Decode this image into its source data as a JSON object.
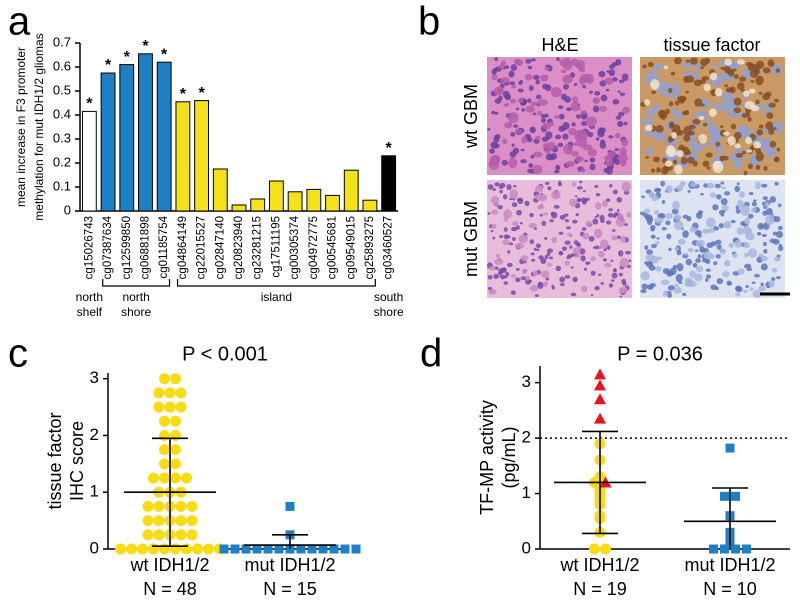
{
  "chart_data": [
    {
      "type": "bar",
      "label": "a",
      "ylabel": [
        "mean increase in F3 promoter",
        "methylation for mut IDH1/2 gliomas"
      ],
      "categories": [
        "cg15026743",
        "cg07387634",
        "cg12599850",
        "cg06881898",
        "cg01185754",
        "cg04864149",
        "cg22015527",
        "cg02847140",
        "cg20823940",
        "cg23281215",
        "cg17511195",
        "cg00305374",
        "cg04972775",
        "cg00545681",
        "cg09549015",
        "cg25893275",
        "cg03460527"
      ],
      "values": [
        0.415,
        0.575,
        0.61,
        0.655,
        0.62,
        0.455,
        0.46,
        0.175,
        0.025,
        0.05,
        0.125,
        0.08,
        0.09,
        0.065,
        0.17,
        0.045,
        0.23
      ],
      "colors": [
        "#ffffff",
        "#1f7fc4",
        "#1f7fc4",
        "#1f7fc4",
        "#1f7fc4",
        "#f5e11a",
        "#f5e11a",
        "#f5e11a",
        "#f5e11a",
        "#f5e11a",
        "#f5e11a",
        "#f5e11a",
        "#f5e11a",
        "#f5e11a",
        "#f5e11a",
        "#f5e11a",
        "#000000"
      ],
      "significance": [
        "*",
        "*",
        "*",
        "*",
        "*",
        "*",
        "*",
        null,
        null,
        null,
        null,
        null,
        null,
        null,
        null,
        null,
        "*"
      ],
      "regions": [
        [
          "north",
          "shelf"
        ],
        [
          "north",
          "shore"
        ],
        [
          "north",
          "shore"
        ],
        [
          "north",
          "shore"
        ],
        [
          "north",
          "shore"
        ],
        [
          "island"
        ],
        [
          "island"
        ],
        [
          "island"
        ],
        [
          "island"
        ],
        [
          "island"
        ],
        [
          "island"
        ],
        [
          "island"
        ],
        [
          "island"
        ],
        [
          "island"
        ],
        [
          "island"
        ],
        [
          "island"
        ],
        [
          "south",
          "shore"
        ]
      ],
      "ylim": [
        0,
        0.7
      ],
      "yticks": [
        0,
        0.1,
        0.2,
        0.3,
        0.4,
        0.5,
        0.6,
        0.7
      ]
    },
    {
      "type": "strip",
      "label": "c",
      "title": "P < 0.001",
      "ylabel": [
        "tissue factor",
        "IHC score"
      ],
      "ylim": [
        0,
        3.1
      ],
      "yticks": [
        0,
        1,
        2,
        3
      ],
      "groups": [
        {
          "category": "wt IDH1/2",
          "n_label": "N = 48",
          "mean": 1.0,
          "sd": 0.95,
          "points": [
            {
              "marker": "circle",
              "color": "#f7dc14",
              "values": [
                3,
                3,
                2.75,
                2.75,
                2.75,
                2.5,
                2.5,
                2.5,
                2.25,
                2.25,
                2,
                2,
                1.75,
                1.75,
                1.5,
                1.5,
                1.25,
                1.25,
                1.25,
                1.25,
                1,
                1,
                1,
                0.75,
                0.75,
                0.75,
                0.75,
                0.75,
                0.5,
                0.5,
                0.5,
                0.5,
                0.5,
                0.25,
                0.25,
                0.25,
                0.25,
                0.25,
                0,
                0,
                0,
                0,
                0,
                0,
                0,
                0,
                0,
                0
              ]
            }
          ]
        },
        {
          "category": "mut IDH1/2",
          "n_label": "N = 15",
          "mean": 0.07,
          "sd": 0.18,
          "points": [
            {
              "marker": "square",
              "color": "#1f7fc4",
              "values": [
                0.75,
                0.25,
                0,
                0,
                0,
                0,
                0,
                0,
                0,
                0,
                0,
                0,
                0,
                0,
                0
              ]
            }
          ]
        }
      ]
    },
    {
      "type": "strip",
      "label": "d",
      "title": "P = 0.036",
      "ylabel": [
        "TF-MP activity",
        "(pg/mL)"
      ],
      "ylim": [
        0,
        3.3
      ],
      "yticks": [
        0,
        1,
        2,
        3
      ],
      "threshold": 2,
      "groups": [
        {
          "category": "wt IDH1/2",
          "n_label": "N = 19",
          "mean": 1.2,
          "sd": 0.92,
          "points": [
            {
              "marker": "circle",
              "color": "#f7dc14",
              "values": [
                1.9,
                1.6,
                1.3,
                1.2,
                1.05,
                1.0,
                0.95,
                0.85,
                0.8,
                0.6,
                0.55,
                0.3,
                0,
                0
              ]
            },
            {
              "marker": "triangle",
              "color": "#e8141c",
              "values": [
                3.15,
                2.95,
                2.7,
                2.35,
                1.2
              ]
            }
          ]
        },
        {
          "category": "mut IDH1/2",
          "n_label": "N = 10",
          "mean": 0.5,
          "sd": 0.6,
          "points": [
            {
              "marker": "square",
              "color": "#1f7fc4",
              "values": [
                1.82,
                0.95,
                0.95,
                0.6,
                0.3,
                0.15,
                0,
                0,
                0,
                0
              ]
            }
          ]
        }
      ]
    }
  ],
  "panel_b": {
    "label": "b",
    "columns": [
      "H&E",
      "tissue factor"
    ],
    "rows": [
      "wt GBM",
      "mut GBM"
    ]
  }
}
